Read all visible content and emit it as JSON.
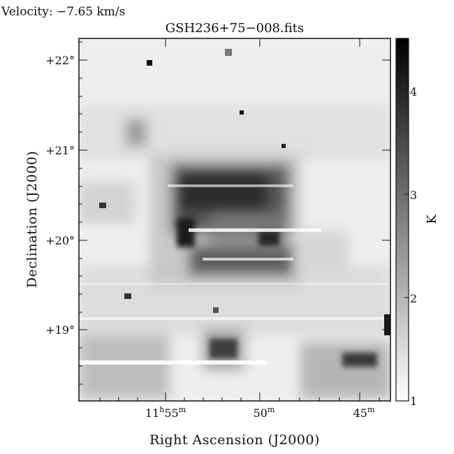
{
  "header": {
    "velocity": "Velocity: −7.65 km/s",
    "file_title": "GSH236+75−008.fits"
  },
  "axes": {
    "xlabel": "Right Ascension (J2000)",
    "ylabel": "Declination (J2000)",
    "x_ticks": [
      {
        "main": "11",
        "sup1": "h",
        "rest": "55",
        "sup2": "m"
      },
      {
        "main": "50",
        "sup1": "m",
        "rest": "",
        "sup2": ""
      },
      {
        "main": "45",
        "sup1": "m",
        "rest": "",
        "sup2": ""
      }
    ],
    "y_ticks": [
      "+22°",
      "+21°",
      "+20°",
      "+19°"
    ]
  },
  "colorbar": {
    "unit": "K",
    "ticks": [
      "1",
      "2",
      "3",
      "4"
    ],
    "range": [
      1,
      4.5
    ]
  }
}
